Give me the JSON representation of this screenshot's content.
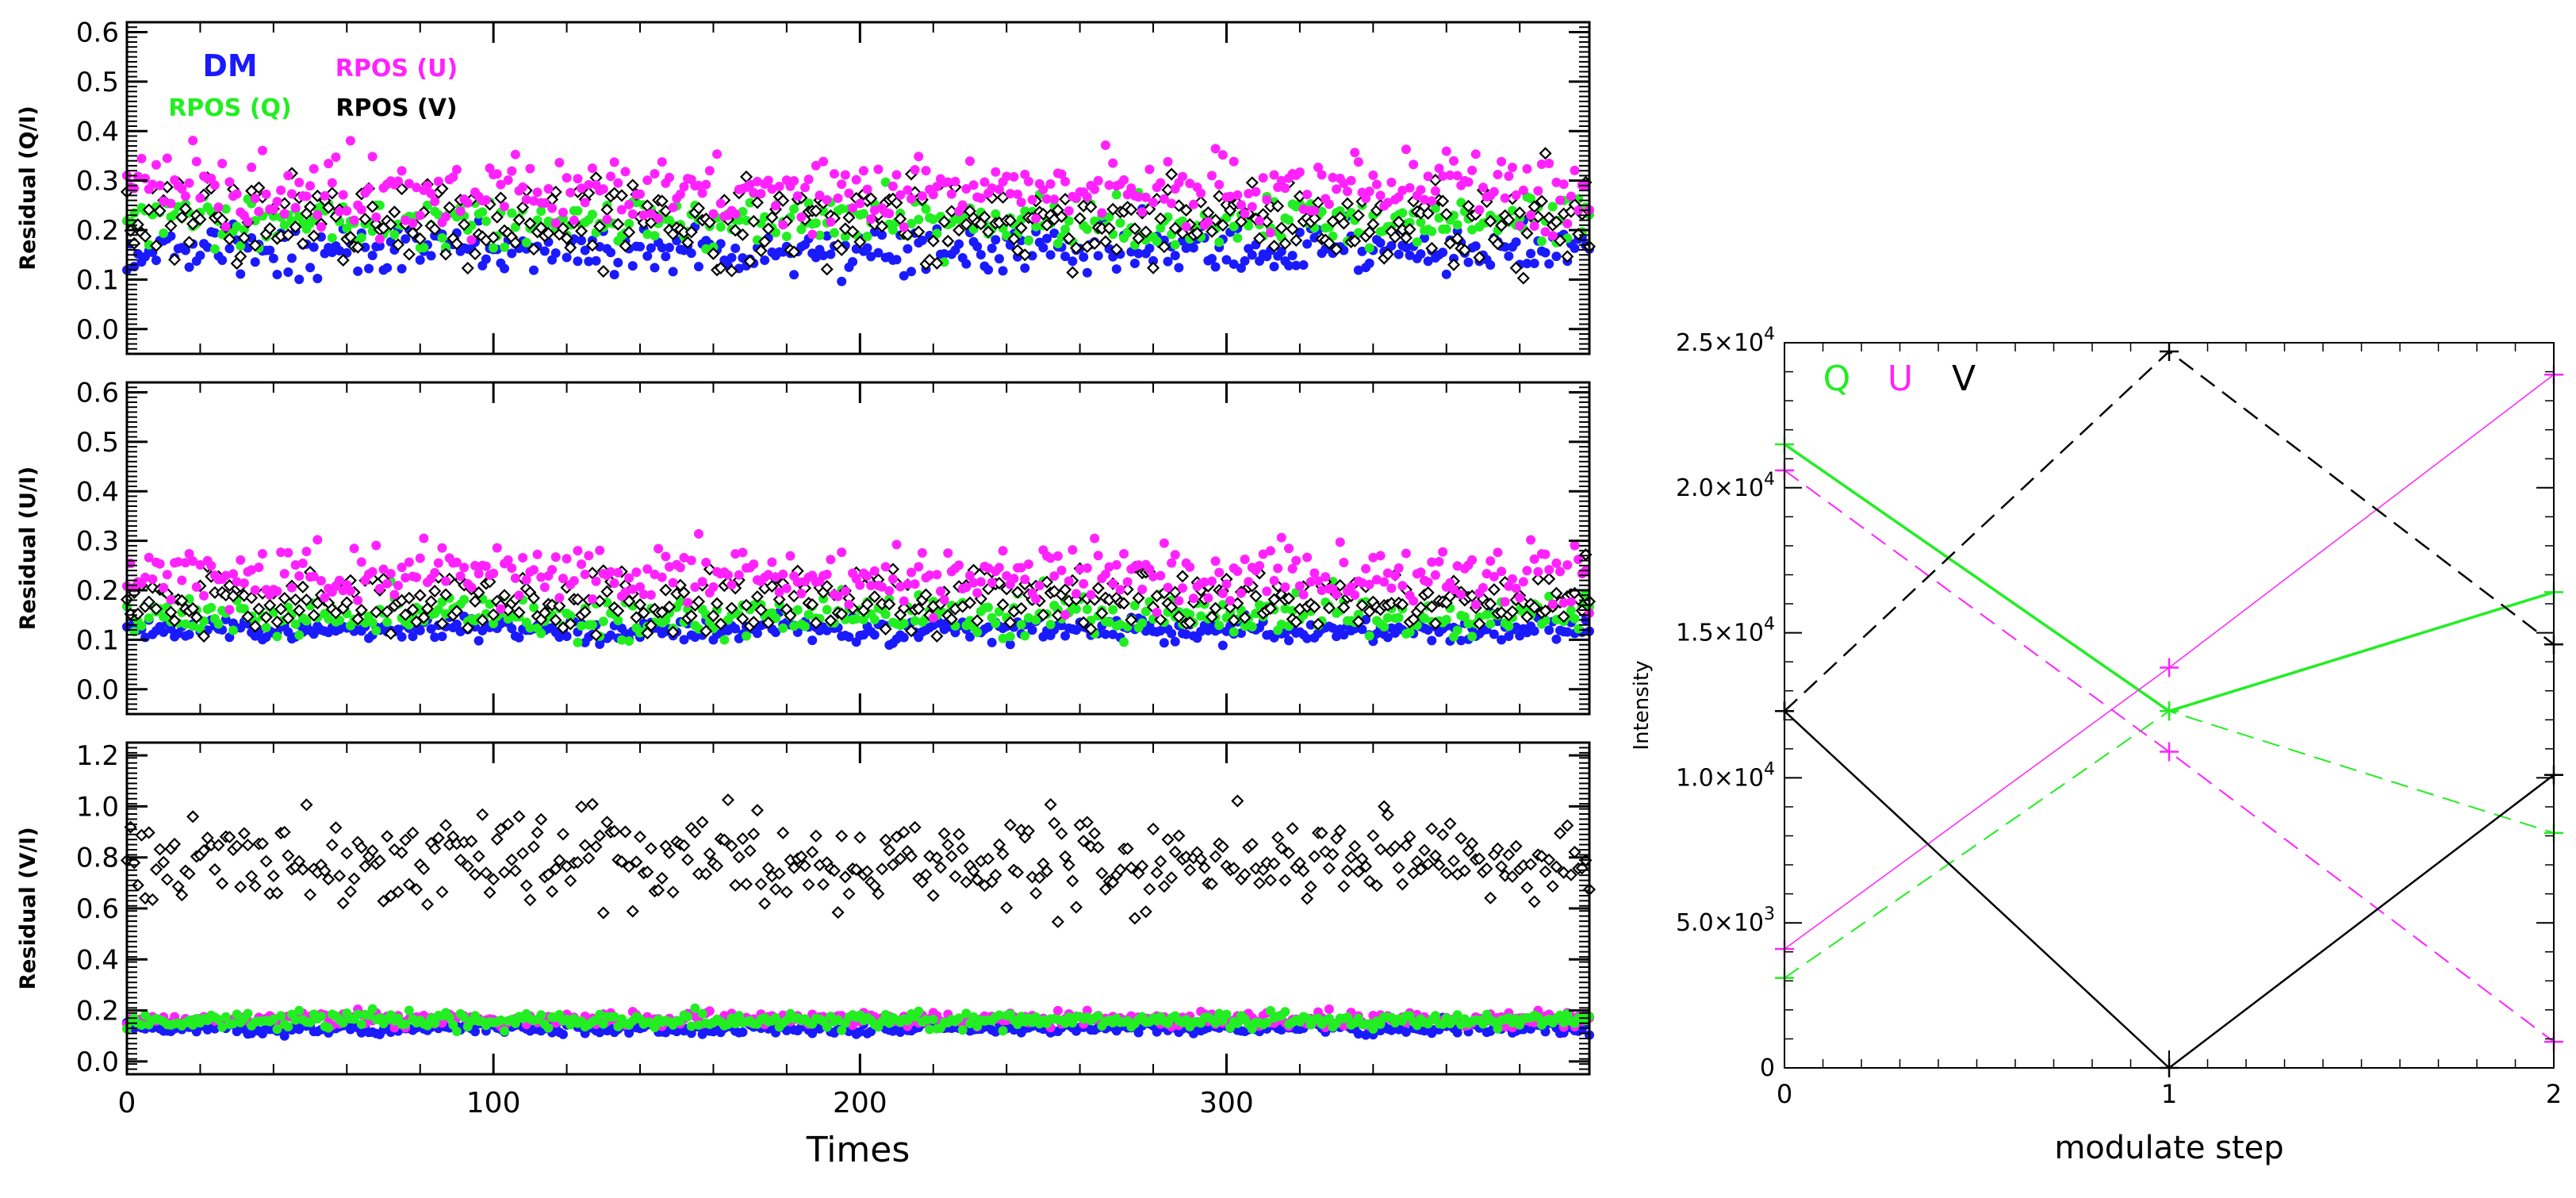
{
  "colors": {
    "DM": "#1a1aff",
    "RPOS_Q": "#22ee22",
    "RPOS_U": "#ff22ff",
    "RPOS_V": "#000000",
    "axis": "#000000"
  },
  "chart_data": [
    {
      "type": "scatter",
      "panel": "residual-Q",
      "ylabel": "Residual (Q/I)",
      "xlabel": "",
      "xlim": [
        0,
        399
      ],
      "ylim": [
        -0.05,
        0.62
      ],
      "yticks": [
        0.0,
        0.1,
        0.2,
        0.3,
        0.4,
        0.5,
        0.6
      ],
      "ytick_labels": [
        "0.0",
        "0.1",
        "0.2",
        "0.3",
        "0.4",
        "0.5",
        "0.6"
      ],
      "x_count": 400,
      "legend": [
        {
          "label": "DM",
          "color": "#1a1aff"
        },
        {
          "label": "RPOS (U)",
          "color": "#ff22ff"
        },
        {
          "label": "RPOS (Q)",
          "color": "#22ee22"
        },
        {
          "label": "RPOS (V)",
          "color": "#000000"
        }
      ],
      "series": [
        {
          "name": "DM",
          "marker": "dot",
          "color": "#1a1aff",
          "mean": 0.16,
          "spread": 0.025
        },
        {
          "name": "RPOS (Q)",
          "marker": "dot",
          "color": "#22ee22",
          "mean": 0.22,
          "spread": 0.025
        },
        {
          "name": "RPOS (V)",
          "marker": "diamond",
          "color": "#000000",
          "mean": 0.22,
          "spread": 0.04
        },
        {
          "name": "RPOS (U)",
          "marker": "dot",
          "color": "#ff22ff",
          "mean": 0.28,
          "spread": 0.035
        }
      ]
    },
    {
      "type": "scatter",
      "panel": "residual-U",
      "ylabel": "Residual (U/I)",
      "xlabel": "",
      "xlim": [
        0,
        399
      ],
      "ylim": [
        -0.05,
        0.62
      ],
      "yticks": [
        0.0,
        0.1,
        0.2,
        0.3,
        0.4,
        0.5,
        0.6
      ],
      "ytick_labels": [
        "0.0",
        "0.1",
        "0.2",
        "0.3",
        "0.4",
        "0.5",
        "0.6"
      ],
      "x_count": 400,
      "series": [
        {
          "name": "DM",
          "marker": "dot",
          "color": "#1a1aff",
          "mean": 0.12,
          "spread": 0.012
        },
        {
          "name": "RPOS (Q)",
          "marker": "dot",
          "color": "#22ee22",
          "mean": 0.15,
          "spread": 0.02
        },
        {
          "name": "RPOS (V)",
          "marker": "diamond",
          "color": "#000000",
          "mean": 0.18,
          "spread": 0.03
        },
        {
          "name": "RPOS (U)",
          "marker": "dot",
          "color": "#ff22ff",
          "mean": 0.23,
          "spread": 0.03
        }
      ]
    },
    {
      "type": "scatter",
      "panel": "residual-V",
      "ylabel": "Residual (V/I)",
      "xlabel": "Times",
      "xlim": [
        0,
        399
      ],
      "ylim": [
        -0.05,
        1.25
      ],
      "xticks": [
        0,
        100,
        200,
        300
      ],
      "xtick_labels": [
        "0",
        "100",
        "200",
        "300"
      ],
      "yticks": [
        0.0,
        0.2,
        0.4,
        0.6,
        0.8,
        1.0,
        1.2
      ],
      "ytick_labels": [
        "0.0",
        "0.2",
        "0.4",
        "0.6",
        "0.8",
        "1.0",
        "1.2"
      ],
      "x_count": 400,
      "series": [
        {
          "name": "DM",
          "marker": "dot",
          "color": "#1a1aff",
          "mean": 0.13,
          "spread": 0.012
        },
        {
          "name": "RPOS (U)",
          "marker": "dot",
          "color": "#ff22ff",
          "mean": 0.165,
          "spread": 0.015
        },
        {
          "name": "RPOS (Q)",
          "marker": "dot",
          "color": "#22ee22",
          "mean": 0.16,
          "spread": 0.015
        },
        {
          "name": "RPOS (V)",
          "marker": "diamond",
          "color": "#000000",
          "mean": 0.8,
          "spread": 0.09
        }
      ]
    },
    {
      "type": "line",
      "panel": "modulation",
      "xlabel": "modulate step",
      "ylabel": "Intensity",
      "xlim": [
        0,
        2
      ],
      "ylim": [
        0,
        25000
      ],
      "xticks": [
        0,
        1,
        2
      ],
      "xtick_labels": [
        "0",
        "1",
        "2"
      ],
      "yticks": [
        0,
        5000,
        10000,
        15000,
        20000,
        25000
      ],
      "ytick_labels": [
        {
          "mant": "0",
          "exp": ""
        },
        {
          "mant": "5.0×10",
          "exp": "3"
        },
        {
          "mant": "1.0×10",
          "exp": "4"
        },
        {
          "mant": "1.5×10",
          "exp": "4"
        },
        {
          "mant": "2.0×10",
          "exp": "4"
        },
        {
          "mant": "2.5×10",
          "exp": "4"
        }
      ],
      "legend": [
        {
          "label": "Q",
          "color": "#22ee22"
        },
        {
          "label": "U",
          "color": "#ff22ff"
        },
        {
          "label": "V",
          "color": "#000000"
        }
      ],
      "series": [
        {
          "name": "Q",
          "style": "solid",
          "width": 3.5,
          "color": "#22ee22",
          "x": [
            0,
            1,
            2
          ],
          "y": [
            21500,
            12300,
            16400
          ]
        },
        {
          "name": "Q",
          "style": "dashed",
          "width": 2,
          "color": "#22ee22",
          "x": [
            0,
            1,
            2
          ],
          "y": [
            3100,
            12300,
            8100
          ]
        },
        {
          "name": "U",
          "style": "solid",
          "width": 1.5,
          "color": "#ff22ff",
          "x": [
            0,
            1,
            2
          ],
          "y": [
            4100,
            13800,
            23900
          ]
        },
        {
          "name": "U",
          "style": "dashed",
          "width": 2,
          "color": "#ff22ff",
          "x": [
            0,
            1,
            2
          ],
          "y": [
            20600,
            10900,
            900
          ]
        },
        {
          "name": "V",
          "style": "solid",
          "width": 2.5,
          "color": "#000000",
          "x": [
            0,
            1,
            2
          ],
          "y": [
            12300,
            0,
            10100
          ]
        },
        {
          "name": "V",
          "style": "dashed",
          "width": 2.5,
          "color": "#000000",
          "x": [
            0,
            1,
            2
          ],
          "y": [
            12300,
            24700,
            14600
          ]
        }
      ]
    }
  ]
}
